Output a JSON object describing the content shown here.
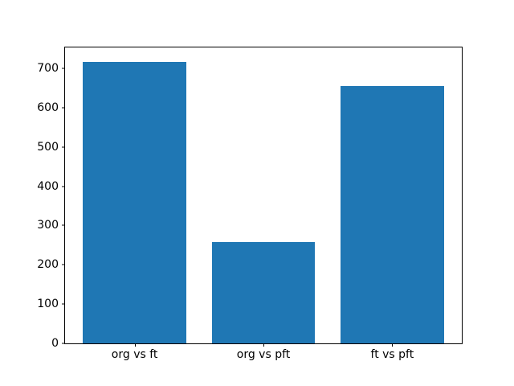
{
  "chart_data": {
    "type": "bar",
    "title": "",
    "categories": [
      "org vs ft",
      "org vs pft",
      "ft vs pft"
    ],
    "x": [
      0,
      1,
      2
    ],
    "values": [
      717,
      257,
      655
    ],
    "bar_color": "#1f77b4",
    "xlabel": "",
    "ylabel": "",
    "xlim": [
      -0.54,
      2.54
    ],
    "ylim": [
      0,
      753
    ],
    "yticks": [
      0,
      100,
      200,
      300,
      400,
      500,
      600,
      700
    ],
    "bar_width": 0.8,
    "grid": false,
    "legend": null,
    "spine_color": "#000000",
    "background_color": "#ffffff"
  }
}
